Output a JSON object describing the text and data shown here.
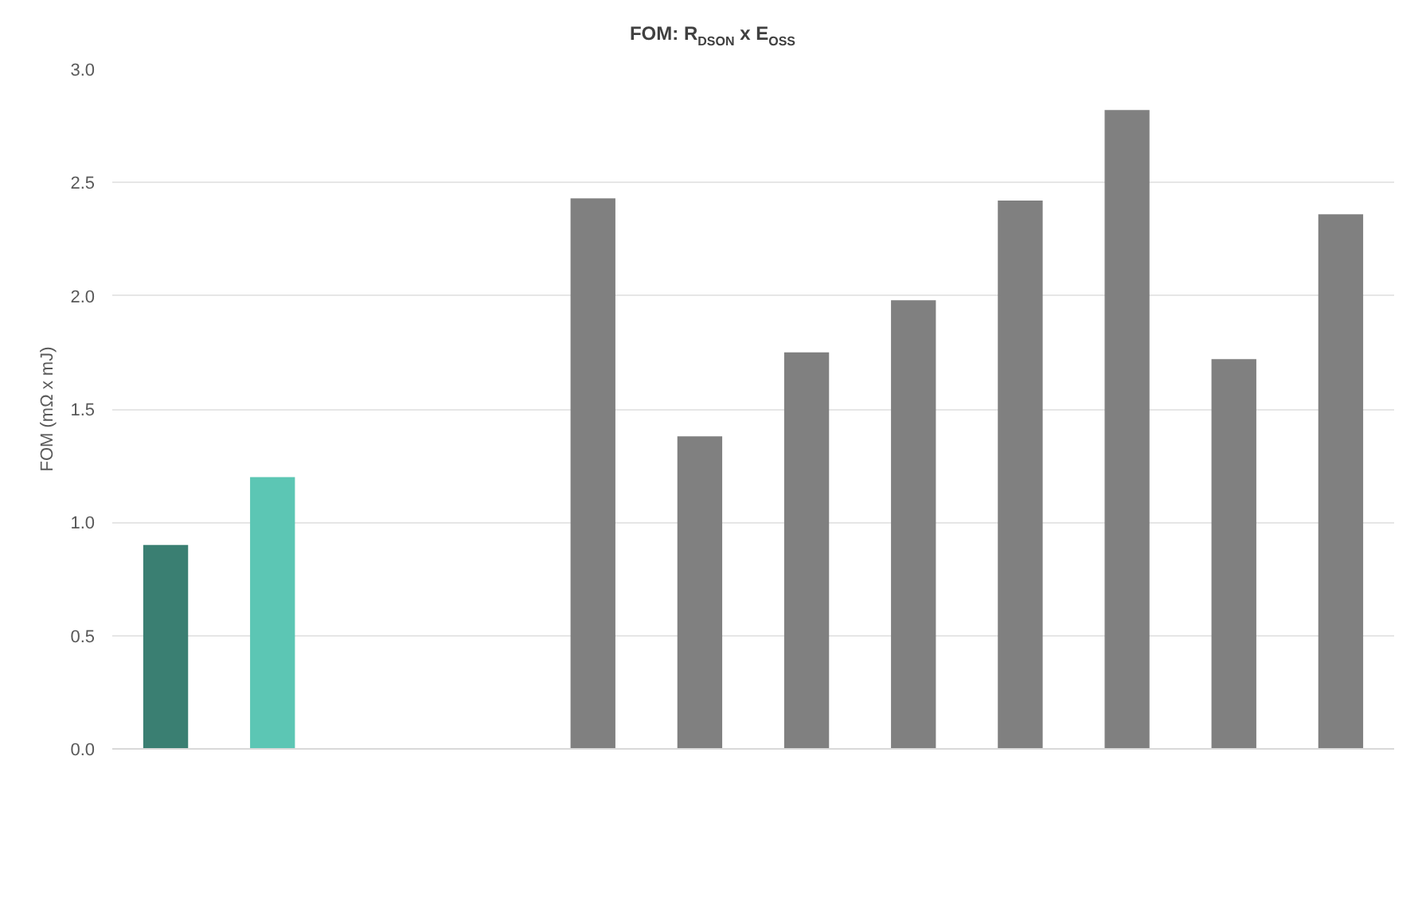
{
  "chart_data": {
    "type": "bar",
    "title": "FOM: R$_{DSON}$ x E$_{OSS}$",
    "ylabel": "FOM (mΩ x mJ)",
    "categories": [
      null,
      null,
      null,
      null,
      null,
      null,
      null,
      null,
      null,
      null,
      null,
      null
    ],
    "values": [
      0.9,
      1.2,
      null,
      null,
      2.43,
      1.38,
      1.75,
      1.98,
      2.42,
      2.82,
      1.72,
      2.36
    ],
    "colors": [
      "#3a7f72",
      "#5cc6b4",
      "#808080",
      "#808080",
      "#808080",
      "#808080",
      "#808080",
      "#808080",
      "#808080",
      "#808080",
      "#808080",
      "#808080"
    ],
    "ylim": [
      0,
      3.0
    ],
    "yticks": [
      {
        "value": 0,
        "label": "0.0"
      },
      {
        "value": 0.5,
        "label": "0.5"
      },
      {
        "value": 1.0,
        "label": "1.0"
      },
      {
        "value": 1.5,
        "label": "1.5"
      },
      {
        "value": 2.0,
        "label": "2.0"
      },
      {
        "value": 2.5,
        "label": "2.5"
      },
      {
        "value": 3.0,
        "label": "3.0"
      }
    ],
    "grid": "y"
  }
}
